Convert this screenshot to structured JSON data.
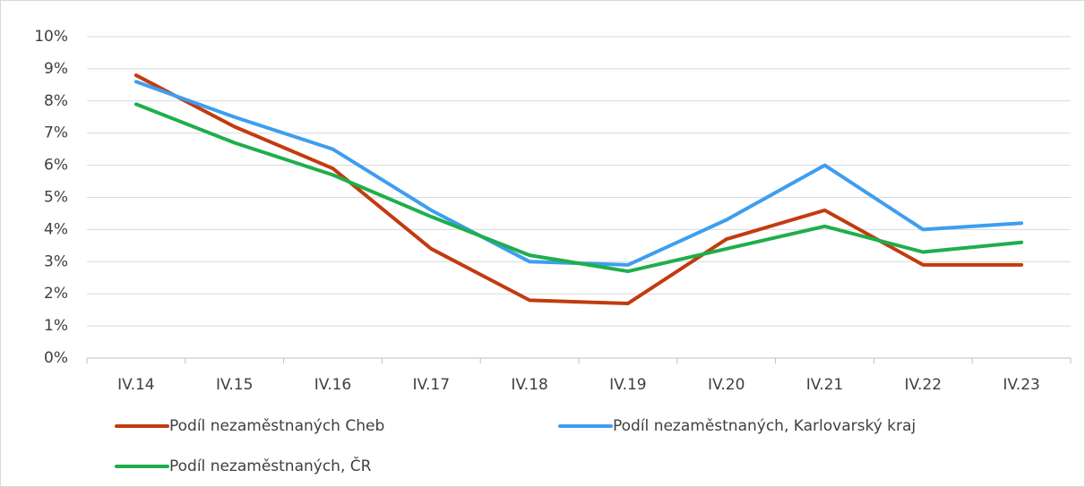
{
  "chart_data": {
    "type": "line",
    "categories": [
      "IV.14",
      "IV.15",
      "IV.16",
      "IV.17",
      "IV.18",
      "IV.19",
      "IV.20",
      "IV.21",
      "IV.22",
      "IV.23"
    ],
    "series": [
      {
        "name": "Podíl nezaměstnaných Cheb",
        "color": "#c23b0f",
        "values": [
          8.8,
          7.2,
          5.9,
          3.4,
          1.8,
          1.7,
          3.7,
          4.6,
          2.9,
          2.9
        ]
      },
      {
        "name": "Podíl nezaměstnaných, Karlovarský kraj",
        "color": "#3d9ef0",
        "values": [
          8.6,
          7.5,
          6.5,
          4.6,
          3.0,
          2.9,
          4.3,
          6.0,
          4.0,
          4.2
        ]
      },
      {
        "name": "Podíl nezaměstnaných, ČR",
        "color": "#1fae4b",
        "values": [
          7.9,
          6.7,
          5.7,
          4.4,
          3.2,
          2.7,
          3.4,
          4.1,
          3.3,
          3.6
        ]
      }
    ],
    "ylim": [
      0,
      10
    ],
    "yticks": [
      {
        "value": 0,
        "label": "0%"
      },
      {
        "value": 1,
        "label": "1%"
      },
      {
        "value": 2,
        "label": "2%"
      },
      {
        "value": 3,
        "label": "3%"
      },
      {
        "value": 4,
        "label": "4%"
      },
      {
        "value": 5,
        "label": "5%"
      },
      {
        "value": 6,
        "label": "6%"
      },
      {
        "value": 7,
        "label": "7%"
      },
      {
        "value": 8,
        "label": "8%"
      },
      {
        "value": 9,
        "label": "9%"
      },
      {
        "value": 10,
        "label": "10%"
      }
    ],
    "grid": true
  }
}
